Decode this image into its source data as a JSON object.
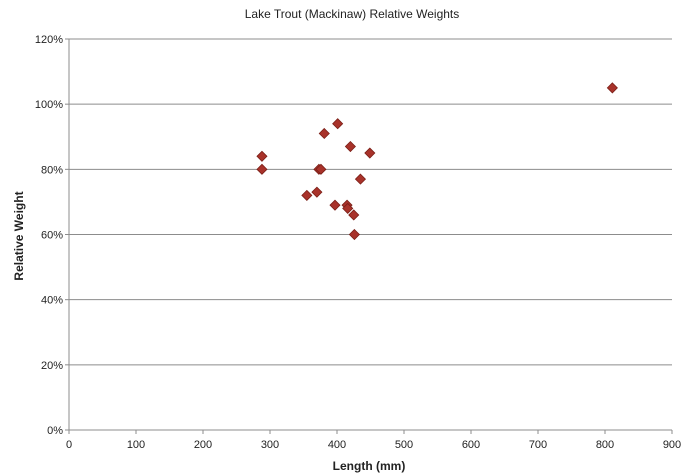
{
  "chart_data": {
    "type": "scatter",
    "title": "Lake Trout (Mackinaw) Relative Weights",
    "xlabel": "Length (mm)",
    "ylabel": "Relative Weight",
    "xlim": [
      0,
      900
    ],
    "ylim": [
      0,
      120
    ],
    "x_ticks": [
      0,
      100,
      200,
      300,
      400,
      500,
      600,
      700,
      800,
      900
    ],
    "y_ticks": [
      0,
      20,
      40,
      60,
      80,
      100,
      120
    ],
    "x_tick_labels": [
      "0",
      "100",
      "200",
      "300",
      "400",
      "500",
      "600",
      "700",
      "800",
      "900"
    ],
    "y_tick_labels": [
      "0%",
      "20%",
      "40%",
      "60%",
      "80%",
      "100%",
      "120%"
    ],
    "grid": "horizontal",
    "legend": "none",
    "marker": "diamond",
    "marker_color": "#a8322a",
    "points": [
      {
        "x": 288,
        "y": 84
      },
      {
        "x": 288,
        "y": 80
      },
      {
        "x": 355,
        "y": 72
      },
      {
        "x": 370,
        "y": 73
      },
      {
        "x": 373,
        "y": 80
      },
      {
        "x": 376,
        "y": 80
      },
      {
        "x": 381,
        "y": 91
      },
      {
        "x": 397,
        "y": 69
      },
      {
        "x": 401,
        "y": 94
      },
      {
        "x": 415,
        "y": 69
      },
      {
        "x": 416,
        "y": 68
      },
      {
        "x": 420,
        "y": 87
      },
      {
        "x": 425,
        "y": 66
      },
      {
        "x": 426,
        "y": 60
      },
      {
        "x": 435,
        "y": 77
      },
      {
        "x": 449,
        "y": 85
      },
      {
        "x": 811,
        "y": 105
      }
    ]
  }
}
